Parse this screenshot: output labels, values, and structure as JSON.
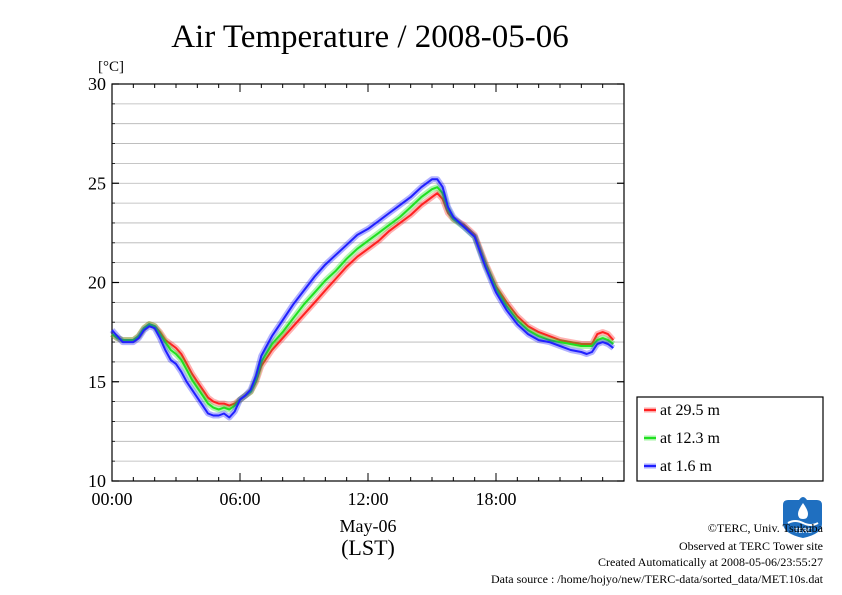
{
  "chart_data": {
    "type": "line",
    "title": "Air Temperature / 2008-05-06",
    "y_unit": "[°C]",
    "ylim": [
      10,
      30
    ],
    "y_ticks": [
      "10",
      "15",
      "20",
      "25",
      "30"
    ],
    "xlim": [
      0,
      23.5
    ],
    "x_ticks": [
      {
        "value": 0,
        "label": "00:00"
      },
      {
        "value": 6,
        "label": "06:00"
      },
      {
        "value": 12,
        "label": "12:00"
      },
      {
        "value": 18,
        "label": "18:00"
      }
    ],
    "x_date_label": "May-06",
    "x_axis_label": "(LST)",
    "grid": true,
    "legend_position": "right",
    "x": [
      0,
      0.25,
      0.5,
      0.75,
      1,
      1.25,
      1.5,
      1.75,
      2,
      2.25,
      2.5,
      2.75,
      3,
      3.25,
      3.5,
      3.75,
      4,
      4.25,
      4.5,
      4.75,
      5,
      5.25,
      5.5,
      5.75,
      6,
      6.25,
      6.5,
      6.75,
      7,
      7.5,
      8,
      8.5,
      9,
      9.5,
      10,
      10.5,
      11,
      11.5,
      12,
      12.5,
      13,
      13.5,
      14,
      14.5,
      15,
      15.25,
      15.5,
      15.75,
      16,
      16.5,
      17,
      17.5,
      18,
      18.5,
      19,
      19.5,
      20,
      20.5,
      21,
      21.5,
      22,
      22.25,
      22.5,
      22.75,
      23,
      23.25,
      23.5
    ],
    "series": [
      {
        "name": "at 29.5 m",
        "color": "#ff2020",
        "values": [
          17.4,
          17.2,
          17.1,
          17.1,
          17.1,
          17.3,
          17.7,
          17.9,
          17.8,
          17.5,
          17.1,
          16.9,
          16.7,
          16.4,
          15.9,
          15.4,
          15.0,
          14.6,
          14.2,
          14.0,
          13.9,
          13.9,
          13.8,
          13.9,
          14.1,
          14.3,
          14.5,
          15.0,
          15.8,
          16.6,
          17.2,
          17.8,
          18.4,
          19.0,
          19.6,
          20.2,
          20.8,
          21.3,
          21.7,
          22.1,
          22.6,
          23.0,
          23.4,
          23.9,
          24.3,
          24.5,
          24.2,
          23.5,
          23.2,
          22.9,
          22.4,
          21.0,
          19.8,
          19.0,
          18.3,
          17.8,
          17.5,
          17.3,
          17.1,
          17.0,
          16.9,
          16.9,
          16.9,
          17.4,
          17.5,
          17.4,
          17.1
        ]
      },
      {
        "name": "at 12.3 m",
        "color": "#20e020",
        "values": [
          17.4,
          17.2,
          17.1,
          17.1,
          17.1,
          17.3,
          17.7,
          17.9,
          17.8,
          17.4,
          17.0,
          16.6,
          16.4,
          16.1,
          15.6,
          15.1,
          14.7,
          14.3,
          13.9,
          13.7,
          13.6,
          13.7,
          13.6,
          13.8,
          14.1,
          14.3,
          14.5,
          15.1,
          16.0,
          16.9,
          17.5,
          18.2,
          18.9,
          19.5,
          20.1,
          20.6,
          21.2,
          21.7,
          22.1,
          22.5,
          22.9,
          23.3,
          23.8,
          24.3,
          24.7,
          24.8,
          24.5,
          23.7,
          23.2,
          22.8,
          22.3,
          20.9,
          19.7,
          18.8,
          18.1,
          17.6,
          17.3,
          17.1,
          17.0,
          16.9,
          16.8,
          16.8,
          16.8,
          17.1,
          17.2,
          17.1,
          16.9
        ]
      },
      {
        "name": "at 1.6 m",
        "color": "#2020ff",
        "values": [
          17.6,
          17.3,
          17.0,
          17.0,
          17.0,
          17.2,
          17.6,
          17.8,
          17.7,
          17.2,
          16.6,
          16.1,
          15.9,
          15.5,
          15.0,
          14.6,
          14.2,
          13.8,
          13.4,
          13.3,
          13.3,
          13.4,
          13.2,
          13.5,
          14.1,
          14.3,
          14.6,
          15.3,
          16.3,
          17.3,
          18.1,
          18.9,
          19.6,
          20.3,
          20.9,
          21.4,
          21.9,
          22.4,
          22.7,
          23.1,
          23.5,
          23.9,
          24.3,
          24.8,
          25.2,
          25.2,
          24.8,
          23.8,
          23.3,
          22.8,
          22.3,
          20.8,
          19.5,
          18.6,
          17.9,
          17.4,
          17.1,
          17.0,
          16.8,
          16.6,
          16.5,
          16.4,
          16.5,
          16.9,
          17.0,
          16.9,
          16.7
        ]
      }
    ]
  },
  "footer": {
    "copyright": "©TERC, Univ. Tsukuba",
    "observed": "Observed at TERC Tower site",
    "created": "Created Automatically at 2008-05-06/23:55:27",
    "source": "Data source : /home/hojyo/new/TERC-data/sorted_data/MET.10s.dat"
  },
  "logo": {
    "text": "TERC",
    "color": "#1f6fc0"
  }
}
